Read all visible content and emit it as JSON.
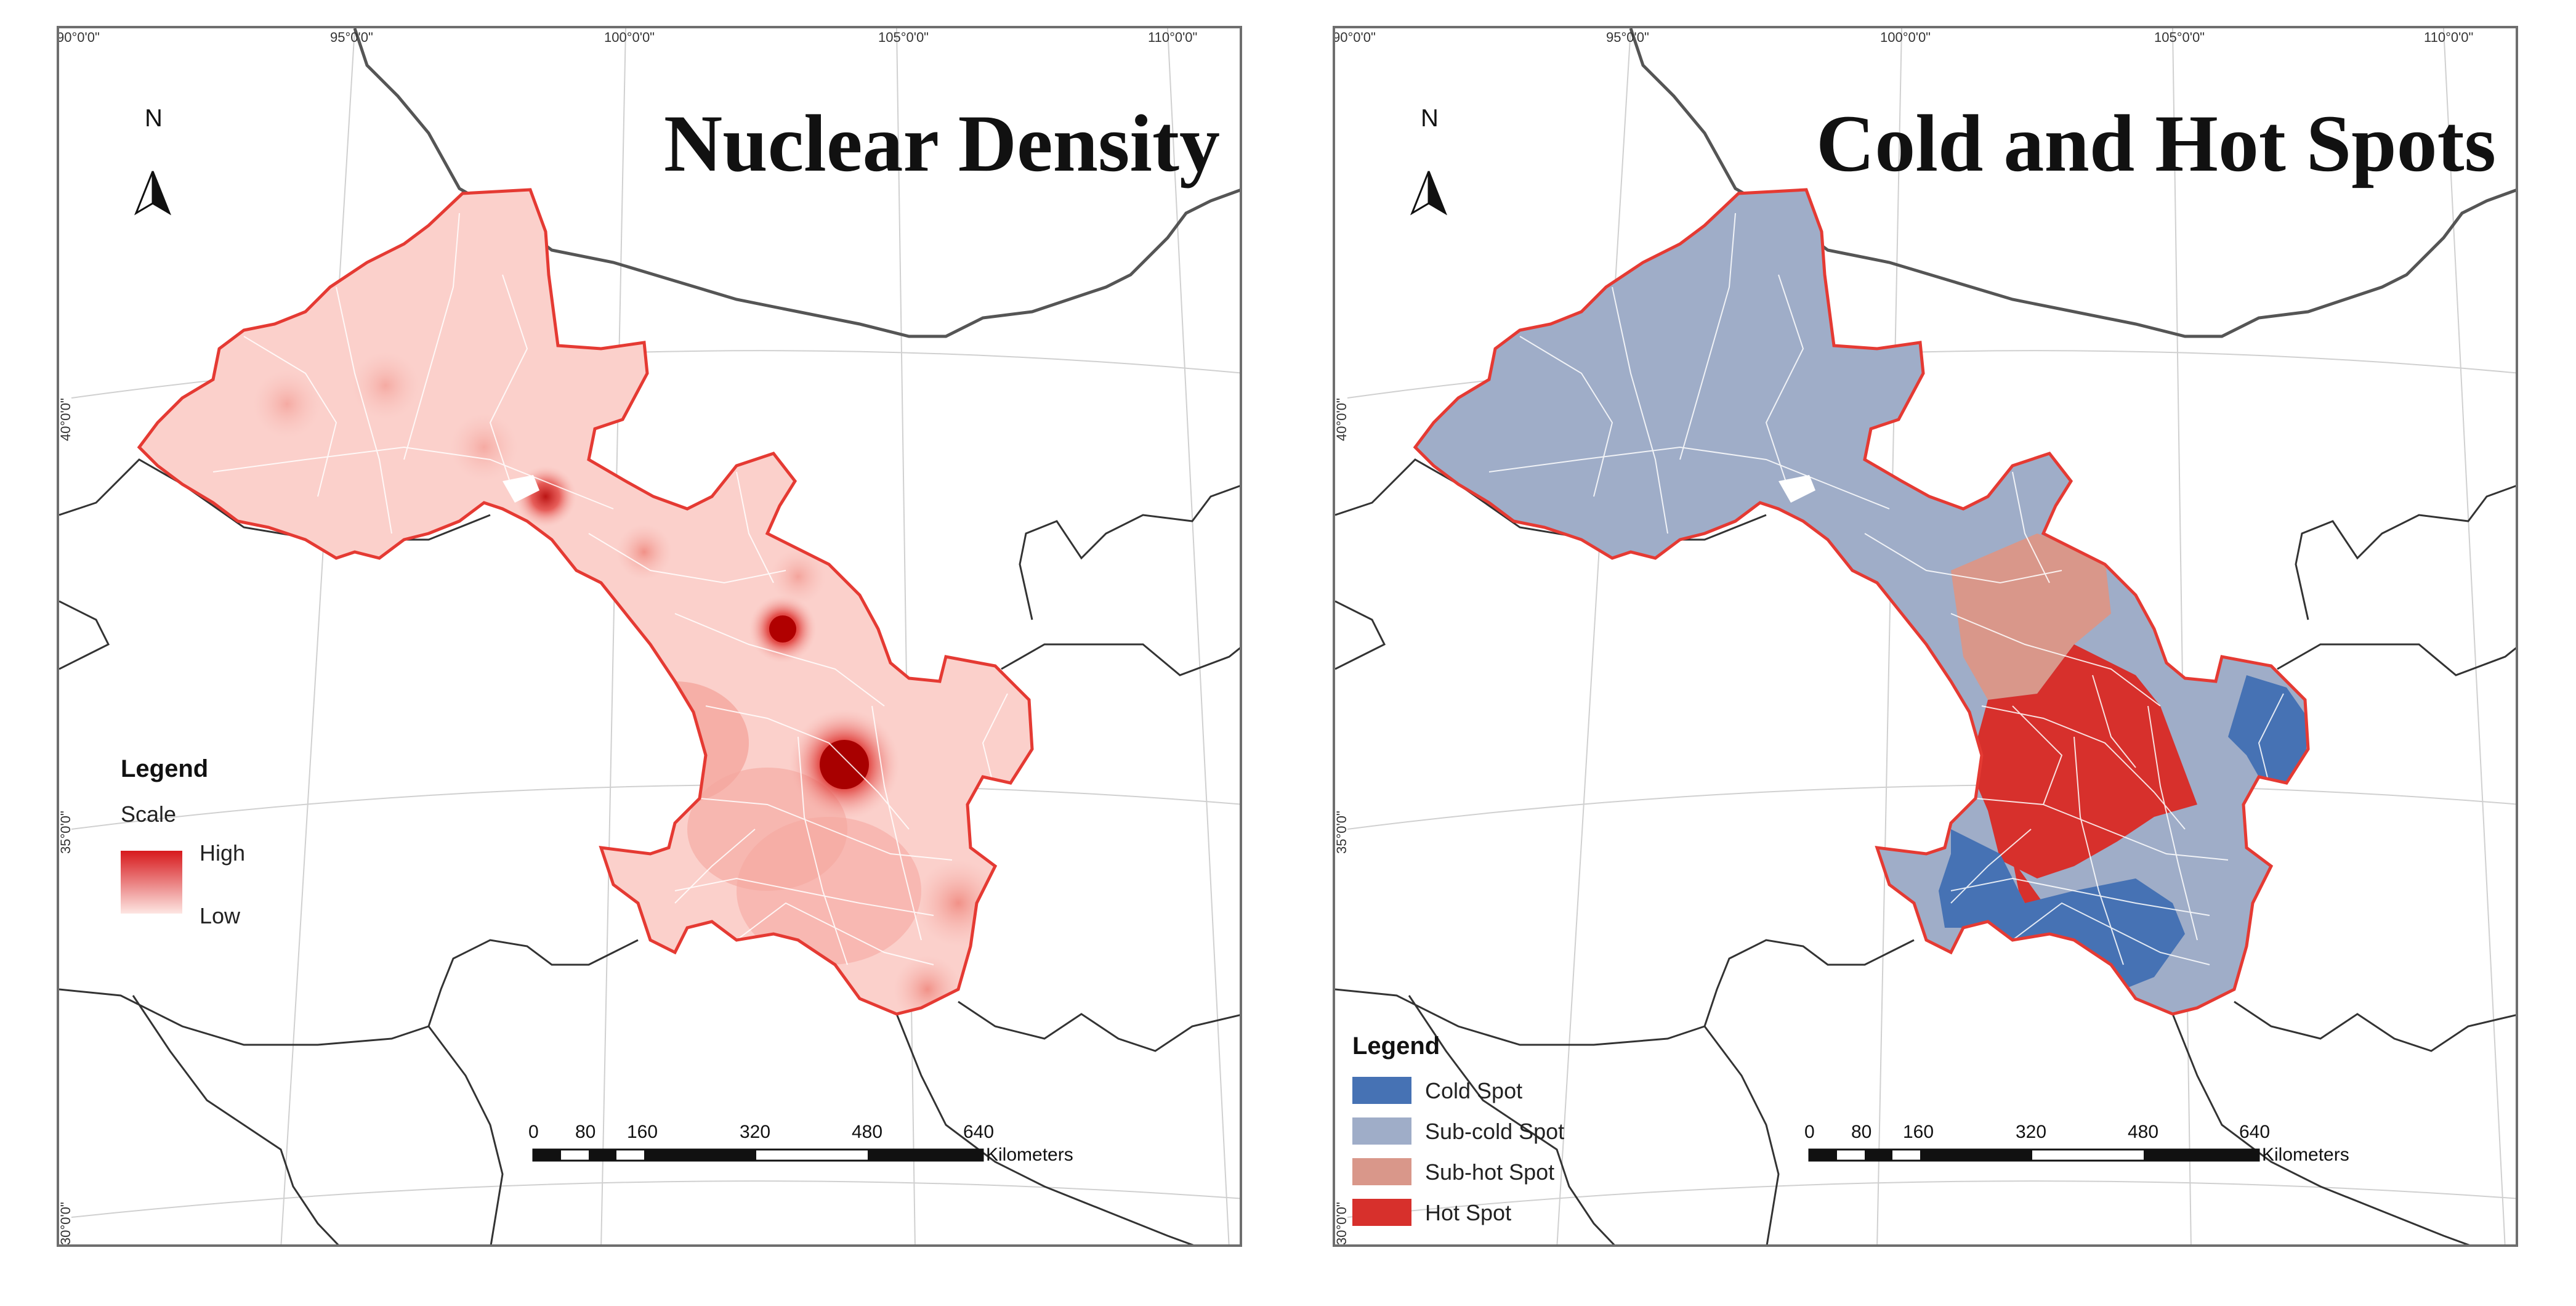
{
  "panels": [
    {
      "title": "Nuclear Density",
      "north": "N",
      "longitudes": [
        "90°0'0\"",
        "95°0'0\"",
        "100°0'0\"",
        "105°0'0\"",
        "110°0'0\""
      ],
      "latitudes": [
        "40°0'0\"",
        "35°0'0\"",
        "30°0'0\""
      ],
      "legend": {
        "title": "Legend",
        "subtitle": "Scale",
        "high": "High",
        "low": "Low",
        "high_color": "#d7191c",
        "low_color": "#fde0dd"
      },
      "scalebar": {
        "ticks": [
          "0",
          "80",
          "160",
          "320",
          "480",
          "640"
        ],
        "unit": "Kilometers"
      }
    },
    {
      "title": "Cold and Hot Spots",
      "north": "N",
      "longitudes": [
        "90°0'0\"",
        "95°0'0\"",
        "100°0'0\"",
        "105°0'0\"",
        "110°0'0\""
      ],
      "latitudes": [
        "40°0'0\"",
        "35°0'0\"",
        "30°0'0\""
      ],
      "legend": {
        "title": "Legend",
        "items": [
          {
            "label": "Cold Spot",
            "color": "#4672b4"
          },
          {
            "label": "Sub-cold Spot",
            "color": "#9fadc8"
          },
          {
            "label": "Sub-hot Spot",
            "color": "#d9978a"
          },
          {
            "label": "Hot Spot",
            "color": "#d7302c"
          }
        ]
      },
      "scalebar": {
        "ticks": [
          "0",
          "80",
          "160",
          "320",
          "480",
          "640"
        ],
        "unit": "Kilometers"
      }
    }
  ]
}
